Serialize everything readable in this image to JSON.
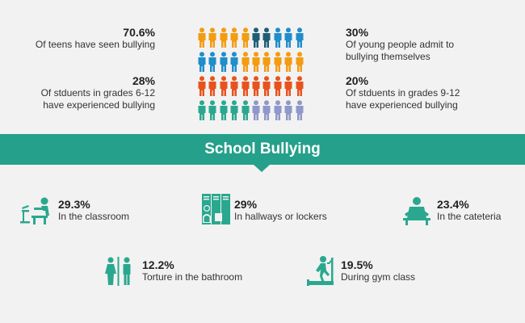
{
  "colors": {
    "teal": "#2aa88f",
    "orange": "#f39c12",
    "blue": "#1f8ecb",
    "dark_teal": "#1f5f75",
    "red": "#e8531d",
    "lavender": "#8f98c9",
    "banner": "#25a08a"
  },
  "stats": {
    "left_top": {
      "pct": "70.6%",
      "desc": "Of teens have seen bullying"
    },
    "left_bottom": {
      "pct": "28%",
      "desc1": "Of stduents in grades 6-12",
      "desc2": "have experienced bullying"
    },
    "right_top": {
      "pct": "30%",
      "desc1": "Of young people admit to",
      "desc2": "bullying themselves"
    },
    "right_bottom": {
      "pct": "20%",
      "desc1": "Of stduents in grades 9-12",
      "desc2": "have experienced bullying"
    }
  },
  "people_rows": [
    [
      "orange",
      "orange",
      "orange",
      "orange",
      "orange",
      "dark_teal",
      "dark_teal",
      "blue",
      "blue",
      "blue"
    ],
    [
      "blue",
      "blue",
      "blue",
      "blue",
      "orange",
      "orange",
      "orange",
      "orange",
      "orange",
      "orange"
    ],
    [
      "red",
      "red",
      "red",
      "red",
      "red",
      "red",
      "red",
      "red",
      "red",
      "red"
    ],
    [
      "teal",
      "teal",
      "teal",
      "teal",
      "teal",
      "lavender",
      "lavender",
      "lavender",
      "lavender",
      "lavender"
    ]
  ],
  "banner": {
    "title": "School Bullying"
  },
  "locations": [
    {
      "pct": "29.3%",
      "desc": "In the classroom",
      "icon": "classroom-desk-icon"
    },
    {
      "pct": "29%",
      "desc": "In hallways or lockers",
      "icon": "locker-icon"
    },
    {
      "pct": "23.4%",
      "desc": "In the cateteria",
      "icon": "cafeteria-icon"
    },
    {
      "pct": "12.2%",
      "desc": "Torture in the bathroom",
      "icon": "restroom-icon"
    },
    {
      "pct": "19.5%",
      "desc": "During gym class",
      "icon": "treadmill-icon"
    }
  ]
}
